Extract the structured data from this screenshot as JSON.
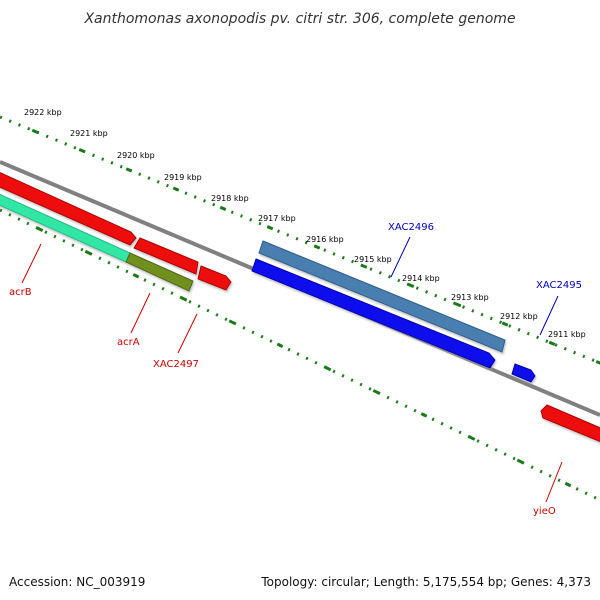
{
  "title": "Xanthomonas axonopodis pv. citri str. 306, complete genome",
  "footer": {
    "accession": "Accession: NC_003919",
    "topology": "Topology: circular; Length: 5,175,554 bp; Genes: 4,373"
  },
  "scale": {
    "labels": [
      "2922 kbp",
      "2921 kbp",
      "2920 kbp",
      "2919 kbp",
      "2918 kbp",
      "2917 kbp",
      "2916 kbp",
      "2915 kbp",
      "2914 kbp",
      "2913 kbp",
      "2912 kbp",
      "2911 kbp"
    ],
    "tick_color": "#1a7a1a"
  },
  "genes": [
    {
      "label": "acrB",
      "color": "#cc0000",
      "feature_color": "#33e6a6"
    },
    {
      "label": "acrA",
      "color": "#cc0000",
      "feature_color": "#6f8f1f"
    },
    {
      "label": "XAC2497",
      "color": "#cc0000",
      "feature_color": "#ee1111"
    },
    {
      "label": "XAC2496",
      "color": "#0000bb",
      "feature_color": "#4a7fb0"
    },
    {
      "label": "XAC2495",
      "color": "#0000bb",
      "feature_color": "#1010ee"
    },
    {
      "label": "yieO",
      "color": "#cc0000",
      "feature_color": "#ee1111"
    }
  ],
  "colors": {
    "backbone": "#808080",
    "red_feature": "#ee1111",
    "blue_feature": "#1010ee",
    "steel_feature": "#4a7fb0",
    "green_feature": "#33e6a6",
    "olive_feature": "#6f8f1f"
  }
}
